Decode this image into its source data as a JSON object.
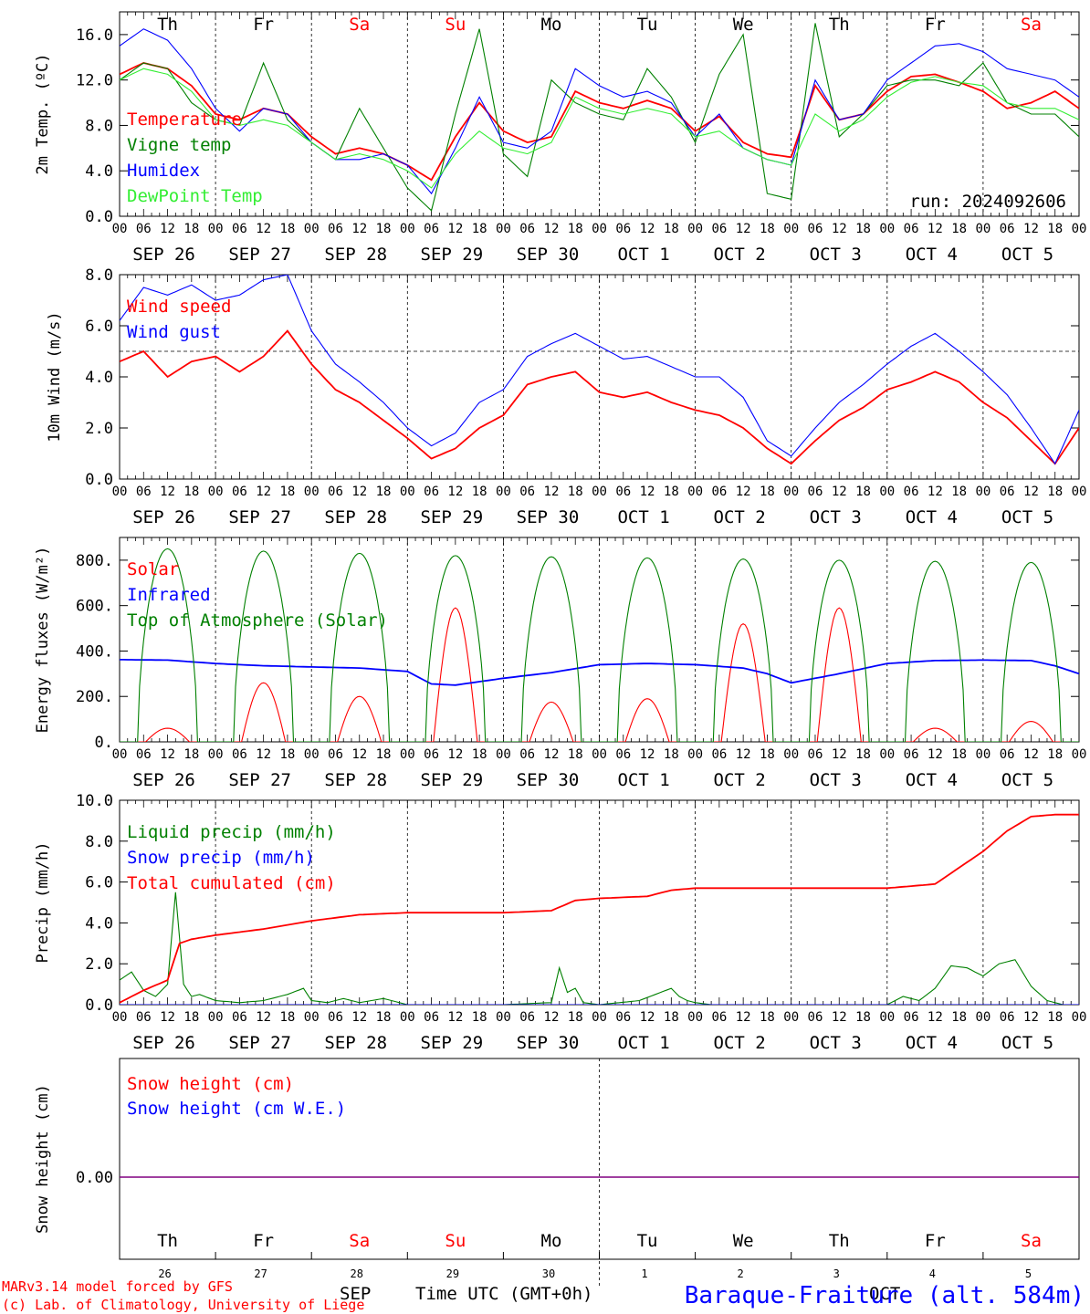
{
  "days": [
    {
      "abbr": "Th",
      "weekend": false,
      "date_short": "26",
      "label": "SEP 26"
    },
    {
      "abbr": "Fr",
      "weekend": false,
      "date_short": "27",
      "label": "SEP 27"
    },
    {
      "abbr": "Sa",
      "weekend": true,
      "date_short": "28",
      "label": "SEP 28"
    },
    {
      "abbr": "Su",
      "weekend": true,
      "date_short": "29",
      "label": "SEP 29"
    },
    {
      "abbr": "Mo",
      "weekend": false,
      "date_short": "30",
      "label": "SEP 30"
    },
    {
      "abbr": "Tu",
      "weekend": false,
      "date_short": "1",
      "label": "OCT  1"
    },
    {
      "abbr": "We",
      "weekend": false,
      "date_short": "2",
      "label": "OCT  2"
    },
    {
      "abbr": "Th",
      "weekend": false,
      "date_short": "3",
      "label": "OCT  3"
    },
    {
      "abbr": "Fr",
      "weekend": false,
      "date_short": "4",
      "label": "OCT  4"
    },
    {
      "abbr": "Sa",
      "weekend": true,
      "date_short": "5",
      "label": "OCT  5"
    }
  ],
  "hour_ticks": [
    "00",
    "06",
    "12",
    "18"
  ],
  "final_hour": "00",
  "colors": {
    "red": "#ff0000",
    "green": "#008000",
    "blue": "#0000ff",
    "lightgreen": "#33ee33",
    "purple": "#800080",
    "text": "#000000"
  },
  "run_label": "run: 2024092606",
  "footer": {
    "model": "MARv3.14 model forced by GFS",
    "copyright": "(c) Lab. of Climatology, University of Liege",
    "month_left": "SEP",
    "time_label": "Time UTC (GMT+0h)",
    "month_right": "OCT",
    "station": "Baraque-Fraiture (alt. 584m)"
  },
  "chart_data": [
    {
      "id": "temperature",
      "type": "line",
      "ylabel": "2m Temp. (ºC)",
      "ylim": [
        0,
        18
      ],
      "yticks": [
        "0.0",
        "4.0",
        "8.0",
        "12.0",
        "16.0"
      ],
      "x_unit": "hours since 2024-09-26 00 UTC",
      "series": [
        {
          "name": "Temperature",
          "color": "#ff0000",
          "x": [
            0,
            6,
            12,
            18,
            24,
            30,
            36,
            42,
            48,
            54,
            60,
            66,
            72,
            78,
            84,
            90,
            96,
            102,
            108,
            114,
            120,
            126,
            132,
            138,
            144,
            150,
            156,
            162,
            168,
            174,
            180,
            186,
            192,
            198,
            204,
            210,
            216,
            222,
            228,
            234,
            240
          ],
          "y": [
            12.5,
            13.5,
            13.0,
            11.5,
            9.0,
            8.5,
            9.5,
            9.0,
            7.0,
            5.5,
            6.0,
            5.5,
            4.5,
            3.2,
            7.0,
            10.0,
            7.5,
            6.5,
            7.0,
            11.0,
            10.0,
            9.5,
            10.2,
            9.5,
            7.5,
            8.8,
            6.5,
            5.5,
            5.2,
            11.5,
            8.5,
            9.0,
            11.0,
            12.3,
            12.5,
            11.8,
            11.0,
            9.5,
            10.0,
            11.0,
            9.5
          ]
        },
        {
          "name": "Vigne temp",
          "color": "#008000",
          "x": [
            0,
            6,
            12,
            18,
            24,
            30,
            36,
            42,
            48,
            54,
            60,
            66,
            72,
            78,
            84,
            90,
            96,
            102,
            108,
            114,
            120,
            126,
            132,
            138,
            144,
            150,
            156,
            162,
            168,
            174,
            180,
            186,
            192,
            198,
            204,
            210,
            216,
            222,
            228,
            234,
            240
          ],
          "y": [
            12.0,
            13.5,
            13.0,
            10.0,
            8.5,
            8.0,
            13.5,
            8.5,
            6.5,
            5.0,
            9.5,
            6.0,
            2.5,
            0.5,
            9.0,
            16.5,
            5.5,
            3.5,
            12.0,
            10.0,
            9.0,
            8.5,
            13.0,
            10.5,
            6.5,
            12.5,
            16.0,
            2.0,
            1.5,
            17.0,
            7.0,
            9.0,
            11.5,
            12.0,
            12.0,
            11.5,
            13.5,
            10.0,
            9.0,
            9.0,
            7.0
          ]
        },
        {
          "name": "Humidex",
          "color": "#0000ff",
          "x": [
            0,
            6,
            12,
            18,
            24,
            30,
            36,
            42,
            48,
            54,
            60,
            66,
            72,
            78,
            84,
            90,
            96,
            102,
            108,
            114,
            120,
            126,
            132,
            138,
            144,
            150,
            156,
            162,
            168,
            174,
            180,
            186,
            192,
            198,
            204,
            210,
            216,
            222,
            228,
            234,
            240
          ],
          "y": [
            15.0,
            16.5,
            15.5,
            13.0,
            9.5,
            7.5,
            9.5,
            9.0,
            6.5,
            5.0,
            5.0,
            5.5,
            4.5,
            2.0,
            6.0,
            10.5,
            6.5,
            6.0,
            7.5,
            13.0,
            11.5,
            10.5,
            11.0,
            10.0,
            7.0,
            9.0,
            6.0,
            5.0,
            4.5,
            12.0,
            8.5,
            9.0,
            12.0,
            13.5,
            15.0,
            15.2,
            14.5,
            13.0,
            12.5,
            12.0,
            10.5
          ]
        },
        {
          "name": "DewPoint Temp",
          "color": "#33ee33",
          "x": [
            0,
            6,
            12,
            18,
            24,
            30,
            36,
            42,
            48,
            54,
            60,
            66,
            72,
            78,
            84,
            90,
            96,
            102,
            108,
            114,
            120,
            126,
            132,
            138,
            144,
            150,
            156,
            162,
            168,
            174,
            180,
            186,
            192,
            198,
            204,
            210,
            216,
            222,
            228,
            234,
            240
          ],
          "y": [
            12.0,
            13.0,
            12.5,
            11.0,
            8.5,
            8.0,
            8.5,
            8.0,
            6.5,
            5.0,
            5.5,
            5.0,
            4.0,
            2.5,
            5.5,
            7.5,
            6.0,
            5.5,
            6.5,
            10.5,
            9.5,
            9.0,
            9.5,
            9.0,
            7.0,
            7.5,
            6.0,
            5.0,
            4.5,
            9.0,
            7.5,
            8.5,
            10.5,
            11.8,
            12.3,
            11.8,
            11.5,
            10.0,
            9.5,
            9.5,
            8.5
          ]
        }
      ]
    },
    {
      "id": "wind",
      "type": "line",
      "ylabel": "10m Wind (m/s)",
      "ylim": [
        0,
        8
      ],
      "yticks": [
        "0.0",
        "2.0",
        "4.0",
        "6.0",
        "8.0"
      ],
      "reference_line": 5,
      "series": [
        {
          "name": "Wind speed",
          "color": "#ff0000",
          "x": [
            0,
            6,
            12,
            18,
            24,
            30,
            36,
            42,
            48,
            54,
            60,
            66,
            72,
            78,
            84,
            90,
            96,
            102,
            108,
            114,
            120,
            126,
            132,
            138,
            144,
            150,
            156,
            162,
            168,
            174,
            180,
            186,
            192,
            198,
            204,
            210,
            216,
            222,
            228,
            234,
            240
          ],
          "y": [
            4.6,
            5.0,
            4.0,
            4.6,
            4.8,
            4.2,
            4.8,
            5.8,
            4.5,
            3.5,
            3.0,
            2.3,
            1.6,
            0.8,
            1.2,
            2.0,
            2.5,
            3.7,
            4.0,
            4.2,
            3.4,
            3.2,
            3.4,
            3.0,
            2.7,
            2.5,
            2.0,
            1.2,
            0.6,
            1.5,
            2.3,
            2.8,
            3.5,
            3.8,
            4.2,
            3.8,
            3.0,
            2.4,
            1.5,
            0.6,
            2.0
          ]
        },
        {
          "name": "Wind gust",
          "color": "#0000ff",
          "x": [
            0,
            6,
            12,
            18,
            24,
            30,
            36,
            42,
            48,
            54,
            60,
            66,
            72,
            78,
            84,
            90,
            96,
            102,
            108,
            114,
            120,
            126,
            132,
            138,
            144,
            150,
            156,
            162,
            168,
            174,
            180,
            186,
            192,
            198,
            204,
            210,
            216,
            222,
            228,
            234,
            240
          ],
          "y": [
            6.2,
            7.5,
            7.2,
            7.6,
            7.0,
            7.2,
            7.8,
            8.0,
            5.8,
            4.5,
            3.8,
            3.0,
            2.0,
            1.3,
            1.8,
            3.0,
            3.5,
            4.8,
            5.3,
            5.7,
            5.2,
            4.7,
            4.8,
            4.4,
            4.0,
            4.0,
            3.2,
            1.5,
            0.9,
            2.0,
            3.0,
            3.7,
            4.5,
            5.2,
            5.7,
            5.0,
            4.2,
            3.3,
            2.0,
            0.6,
            2.7
          ]
        }
      ]
    },
    {
      "id": "energy",
      "type": "line",
      "ylabel": "Energy fluxes (W/m²)",
      "ylim": [
        0,
        900
      ],
      "yticks": [
        "0.",
        "200.",
        "400.",
        "600.",
        "800."
      ],
      "day_peaks": {
        "Top of Atmosphere (Solar)": [
          850,
          840,
          830,
          820,
          815,
          810,
          805,
          800,
          795,
          790
        ],
        "Solar": [
          60,
          260,
          200,
          590,
          175,
          190,
          520,
          590,
          60,
          90
        ]
      },
      "series": [
        {
          "name": "Solar",
          "color": "#ff0000"
        },
        {
          "name": "Infrared",
          "color": "#0000ff",
          "x": [
            0,
            12,
            24,
            36,
            48,
            60,
            72,
            78,
            84,
            96,
            108,
            120,
            132,
            144,
            156,
            162,
            168,
            180,
            192,
            204,
            216,
            228,
            234,
            240
          ],
          "y": [
            362,
            360,
            345,
            335,
            330,
            325,
            310,
            255,
            250,
            280,
            305,
            340,
            345,
            340,
            325,
            300,
            260,
            300,
            345,
            358,
            360,
            358,
            335,
            300
          ]
        },
        {
          "name": "Top of Atmosphere (Solar)",
          "color": "#008000"
        }
      ]
    },
    {
      "id": "precip",
      "type": "line",
      "ylabel": "Precip (mm/h)",
      "ylim": [
        0,
        10
      ],
      "yticks": [
        "0.0",
        "2.0",
        "4.0",
        "6.0",
        "8.0",
        "10.0"
      ],
      "series": [
        {
          "name": "Liquid precip (mm/h)",
          "color": "#008000",
          "x": [
            0,
            3,
            6,
            9,
            12,
            14,
            16,
            18,
            20,
            24,
            30,
            36,
            42,
            46,
            48,
            52,
            56,
            60,
            66,
            70,
            72,
            96,
            108,
            110,
            112,
            114,
            116,
            120,
            130,
            138,
            140,
            142,
            144,
            148,
            168,
            192,
            196,
            200,
            204,
            208,
            212,
            216,
            220,
            224,
            228,
            232,
            234,
            236,
            238,
            240
          ],
          "y": [
            1.2,
            1.6,
            0.7,
            0.4,
            1.0,
            5.5,
            1.0,
            0.4,
            0.5,
            0.2,
            0.1,
            0.2,
            0.5,
            0.8,
            0.2,
            0.1,
            0.3,
            0.1,
            0.3,
            0.1,
            0.0,
            0.0,
            0.1,
            1.8,
            0.6,
            0.8,
            0.1,
            0.0,
            0.2,
            0.8,
            0.4,
            0.2,
            0.1,
            0.0,
            0.0,
            0.0,
            0.4,
            0.2,
            0.8,
            1.9,
            1.8,
            1.4,
            2.0,
            2.2,
            0.9,
            0.2,
            0.1,
            0.0,
            0.0,
            0.0
          ]
        },
        {
          "name": "Snow precip (mm/h)",
          "color": "#0000ff",
          "x": [
            0,
            240
          ],
          "y": [
            0,
            0
          ]
        },
        {
          "name": "Total cumulated (cm)",
          "color": "#ff0000",
          "x": [
            0,
            6,
            12,
            15,
            18,
            24,
            36,
            48,
            60,
            72,
            96,
            108,
            114,
            120,
            132,
            138,
            144,
            168,
            192,
            204,
            216,
            222,
            228,
            234,
            240
          ],
          "y": [
            0.1,
            0.7,
            1.2,
            3.0,
            3.2,
            3.4,
            3.7,
            4.1,
            4.4,
            4.5,
            4.5,
            4.6,
            5.1,
            5.2,
            5.3,
            5.6,
            5.7,
            5.7,
            5.7,
            5.9,
            7.5,
            8.5,
            9.2,
            9.3,
            9.3
          ]
        }
      ]
    },
    {
      "id": "snow",
      "type": "line",
      "ylabel": "Snow height (cm)",
      "ytick": "0.00",
      "series": [
        {
          "name": "Snow height (cm)",
          "color": "#ff0000",
          "x": [
            0,
            240
          ],
          "y": [
            0,
            0
          ]
        },
        {
          "name": "Snow height (cm W.E.)",
          "color": "#0000ff",
          "x": [
            0,
            240
          ],
          "y": [
            0,
            0
          ]
        }
      ]
    }
  ]
}
